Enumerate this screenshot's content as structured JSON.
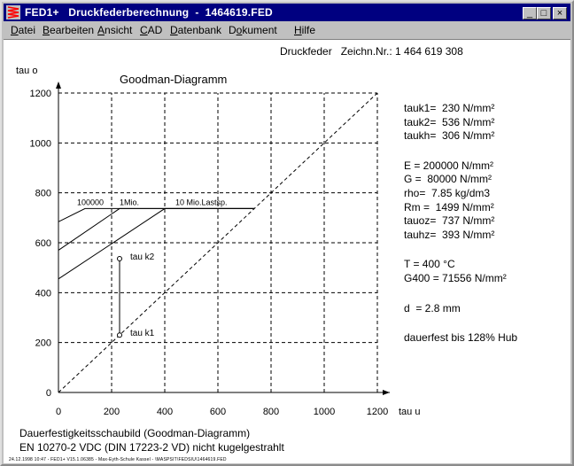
{
  "window": {
    "title": "FED1+   Druckfederberechnung  -  1464619.FED",
    "controls": [
      "_",
      "□",
      "×"
    ]
  },
  "menu": [
    {
      "label": "Datei",
      "accel": "D"
    },
    {
      "label": "Bearbeiten",
      "accel": "B"
    },
    {
      "label": "Ansicht",
      "accel": "A"
    },
    {
      "label": "CAD",
      "accel": "C"
    },
    {
      "label": "Datenbank",
      "accel": "D"
    },
    {
      "label": "Dokument",
      "accel": "o"
    },
    {
      "label": "Hilfe",
      "accel": "H"
    }
  ],
  "header": {
    "drawing_ref": "Druckfeder   Zeichn.Nr.: 1 464 619 308"
  },
  "chart_data": {
    "type": "line",
    "title": "Goodman-Diagramm",
    "xlabel": "tau u",
    "ylabel": "tau o",
    "xlim": [
      0,
      1200
    ],
    "ylim": [
      0,
      1200
    ],
    "xticks": [
      0,
      200,
      400,
      600,
      800,
      1000,
      1200
    ],
    "yticks": [
      0,
      200,
      400,
      600,
      800,
      1000,
      1200
    ],
    "grid": true,
    "series": [
      {
        "name": "100000",
        "x": [
          0,
          100,
          737
        ],
        "y": [
          684,
          737,
          737
        ]
      },
      {
        "name": "1Mio.",
        "x": [
          0,
          230,
          737
        ],
        "y": [
          570,
          737,
          737
        ]
      },
      {
        "name": "10 Mio.Lastsp.",
        "x": [
          0,
          400,
          737
        ],
        "y": [
          455,
          737,
          737
        ]
      },
      {
        "name": "",
        "x": [
          0,
          1200
        ],
        "y": [
          0,
          1200
        ]
      },
      {
        "name": "",
        "x": [
          230,
          230
        ],
        "y": [
          230,
          536
        ]
      }
    ],
    "annotations": [
      {
        "text": "tau k2",
        "x": 230,
        "y": 536
      },
      {
        "text": "tau k1",
        "x": 230,
        "y": 230
      }
    ]
  },
  "results": [
    "tauk1=  230 N/mm²",
    "tauk2=  536 N/mm²",
    "taukh=  306 N/mm²",
    "E = 200000 N/mm²",
    "G =  80000 N/mm²",
    "rho=  7.85 kg/dm3",
    "Rm =  1499 N/mm²",
    "tauoz=  737 N/mm²",
    "tauhz=  393 N/mm²",
    "T = 400 °C",
    "G400 = 71556 N/mm²",
    "d  = 2.8 mm",
    "dauerfest bis 128% Hub"
  ],
  "footer": {
    "line1": "Dauerfestigkeitsschaubild (Goodman-Diagramm)",
    "line2": "EN 10270-2 VDC (DIN 17223-2 VD) nicht kugelgestrahlt",
    "fineprint": "24.12.1998 10:47 - FED1+ V15.1.06385 - Max-Eyth-Schule Kassel - \\MASPSIT\\FEDSIU\\1464619.FED"
  },
  "colors": {
    "titlebar": "#000080",
    "face": "#c0c0c0"
  }
}
